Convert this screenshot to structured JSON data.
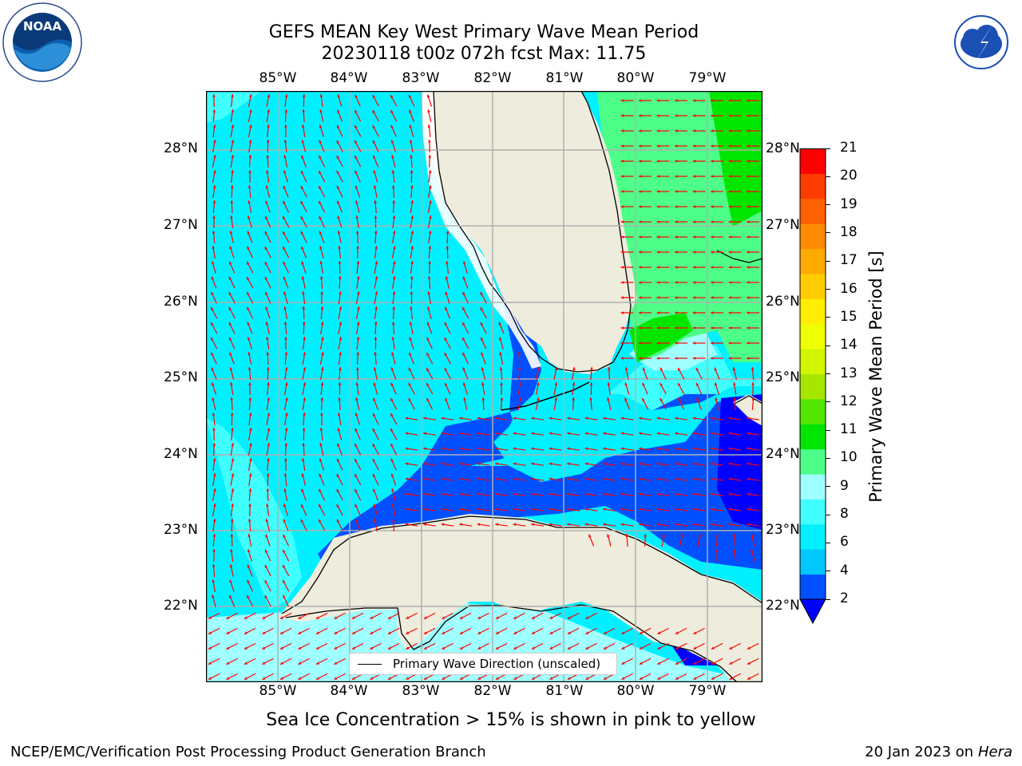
{
  "title": {
    "line1": "GEFS MEAN Key West Primary Wave Mean Period",
    "line2": "20230118 t00z 072h fcst   Max: 11.75"
  },
  "map": {
    "lon_labels": [
      "85°W",
      "84°W",
      "83°W",
      "82°W",
      "81°W",
      "80°W",
      "79°W"
    ],
    "lat_labels": [
      "28°N",
      "27°N",
      "26°N",
      "25°N",
      "24°N",
      "23°N",
      "22°N"
    ],
    "legend_label": "Primary Wave Direction (unscaled)",
    "arrow_color": "#ff0000",
    "land_color": "#eeecdc"
  },
  "colorbar": {
    "title": "Primary Wave Mean Period [s]",
    "ticks": [
      "21",
      "20",
      "19",
      "18",
      "17",
      "16",
      "15",
      "14",
      "13",
      "12",
      "11",
      "10",
      "9",
      "8",
      "6",
      "4",
      "2"
    ],
    "colors": [
      "#0050ff",
      "#00c8ff",
      "#00f0ff",
      "#40ffff",
      "#a0ffff",
      "#4dff88",
      "#00e600",
      "#55e600",
      "#a6e600",
      "#d2f500",
      "#f0ff00",
      "#ffee00",
      "#ffcc00",
      "#ffaa00",
      "#ff8c00",
      "#ff6000",
      "#ff3c00",
      "#ff0000"
    ],
    "under_color": "#0000ff"
  },
  "subtitle": "Sea Ice Concentration > 15% is shown in pink to yellow",
  "footer": {
    "left": "NCEP/EMC/Verification Post Processing Product Generation Branch",
    "right_date": "20 Jan 2023 on ",
    "right_host": "Hera"
  },
  "logos": {
    "noaa_text": "NOAA",
    "nws_text": "NATIONAL WEATHER SERVICE"
  }
}
